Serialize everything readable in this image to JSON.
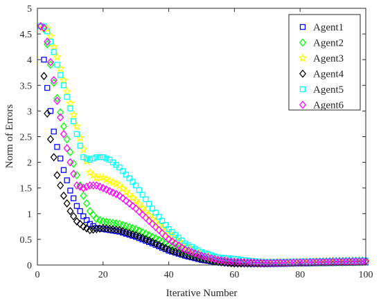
{
  "chart_data": {
    "type": "scatter",
    "title": "",
    "xlabel": "Iterative Number",
    "ylabel": "Norm of Errors",
    "xlim": [
      0,
      100
    ],
    "ylim": [
      0,
      5
    ],
    "xticks": [
      0,
      20,
      40,
      60,
      80,
      100
    ],
    "yticks": [
      0,
      0.5,
      1,
      1.5,
      2,
      2.5,
      3,
      3.5,
      4,
      4.5,
      5
    ],
    "grid": false,
    "legend_position": "top-right",
    "series": [
      {
        "name": "Agent1",
        "marker": "square",
        "color": "#0000ff",
        "x": [
          1,
          2,
          3,
          4,
          5,
          6,
          8,
          10,
          12,
          14,
          16,
          18,
          20,
          25,
          30,
          35,
          40,
          45,
          50,
          55,
          60,
          70,
          80,
          90,
          100
        ],
        "y": [
          4.65,
          4.0,
          3.45,
          3.0,
          2.6,
          2.3,
          1.85,
          1.45,
          1.15,
          0.95,
          0.8,
          0.72,
          0.7,
          0.65,
          0.55,
          0.42,
          0.28,
          0.18,
          0.1,
          0.05,
          0.03,
          0.02,
          0.03,
          0.04,
          0.05
        ]
      },
      {
        "name": "Agent2",
        "marker": "diamond",
        "color": "#00ff00",
        "x": [
          1,
          2,
          3,
          4,
          5,
          6,
          8,
          10,
          12,
          14,
          16,
          18,
          20,
          25,
          30,
          35,
          40,
          45,
          50,
          55,
          60,
          70,
          80,
          90,
          100
        ],
        "y": [
          4.65,
          4.6,
          4.3,
          3.9,
          3.55,
          3.25,
          2.7,
          2.2,
          1.75,
          1.35,
          1.05,
          0.9,
          0.85,
          0.8,
          0.7,
          0.55,
          0.4,
          0.27,
          0.16,
          0.09,
          0.05,
          0.03,
          0.04,
          0.05,
          0.06
        ]
      },
      {
        "name": "Agent3",
        "marker": "star",
        "color": "#ffff00",
        "x": [
          1,
          2,
          3,
          4,
          5,
          6,
          8,
          10,
          12,
          14,
          16,
          18,
          20,
          25,
          30,
          35,
          40,
          45,
          50,
          55,
          60,
          70,
          80,
          90,
          100
        ],
        "y": [
          4.65,
          4.62,
          4.6,
          4.45,
          4.25,
          4.05,
          3.6,
          3.15,
          2.7,
          2.25,
          1.8,
          1.7,
          1.7,
          1.55,
          1.25,
          0.9,
          0.6,
          0.35,
          0.2,
          0.1,
          0.06,
          0.05,
          0.06,
          0.07,
          0.08
        ]
      },
      {
        "name": "Agent4",
        "marker": "diamond",
        "color": "#000000",
        "x": [
          1,
          2,
          3,
          4,
          5,
          6,
          8,
          10,
          12,
          14,
          16,
          18,
          20,
          25,
          30,
          35,
          40,
          45,
          50,
          55,
          60,
          70,
          80,
          90,
          100
        ],
        "y": [
          4.65,
          3.68,
          2.95,
          2.45,
          2.1,
          1.75,
          1.35,
          1.05,
          0.85,
          0.75,
          0.68,
          0.7,
          0.72,
          0.68,
          0.58,
          0.45,
          0.3,
          0.2,
          0.12,
          0.06,
          0.03,
          0.03,
          0.05,
          0.07,
          0.08
        ]
      },
      {
        "name": "Agent5",
        "marker": "square",
        "color": "#00ffff",
        "x": [
          1,
          2,
          3,
          4,
          5,
          6,
          8,
          10,
          12,
          14,
          16,
          18,
          20,
          22,
          25,
          30,
          35,
          40,
          45,
          50,
          55,
          60,
          65,
          70,
          80,
          90,
          100
        ],
        "y": [
          4.65,
          4.65,
          4.55,
          4.35,
          4.15,
          3.9,
          3.5,
          3.05,
          2.55,
          2.1,
          2.05,
          2.1,
          2.1,
          2.05,
          1.9,
          1.55,
          1.1,
          0.7,
          0.42,
          0.25,
          0.15,
          0.12,
          0.08,
          0.06,
          0.07,
          0.08,
          0.09
        ]
      },
      {
        "name": "Agent6",
        "marker": "diamond",
        "color": "#ff00ff",
        "x": [
          1,
          2,
          3,
          4,
          5,
          6,
          8,
          10,
          12,
          14,
          16,
          18,
          20,
          25,
          30,
          35,
          40,
          45,
          50,
          55,
          60,
          70,
          80,
          90,
          100
        ],
        "y": [
          4.65,
          4.62,
          4.35,
          3.95,
          3.6,
          3.2,
          2.55,
          2.0,
          1.55,
          1.5,
          1.55,
          1.55,
          1.5,
          1.35,
          1.1,
          0.8,
          0.5,
          0.3,
          0.18,
          0.1,
          0.06,
          0.04,
          0.05,
          0.06,
          0.07
        ]
      }
    ]
  }
}
